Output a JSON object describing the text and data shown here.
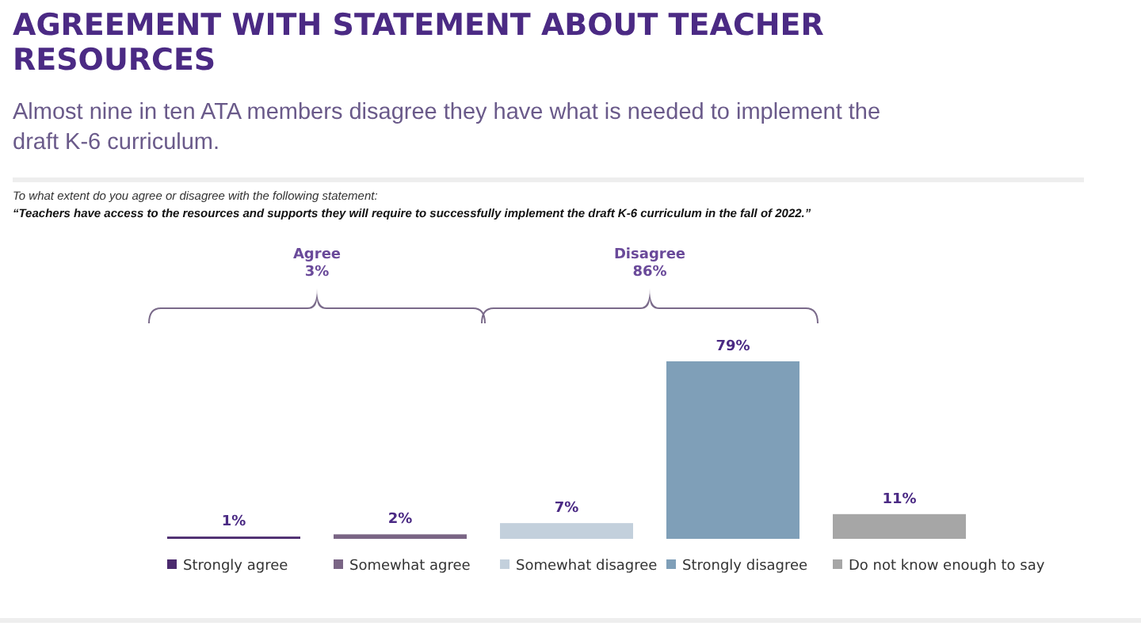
{
  "chart_data": {
    "type": "bar",
    "title": "AGREEMENT WITH STATEMENT ABOUT TEACHER RESOURCES",
    "subtitle": "Almost nine in ten ATA members disagree they have what is needed to implement the draft K-6 curriculum.",
    "annotations": [
      "To what extent do you agree or disagree with the following statement:",
      "“Teachers have access to the resources and supports they will require to successfully implement the draft K-6 curriculum in the fall of 2022.”",
      "Agree\n3%",
      "Disagree\n86%"
    ],
    "categories": [
      "Strongly agree",
      "Somewhat agree",
      "Somewhat disagree",
      "Strongly disagree",
      "Do not know enough to say"
    ],
    "values": [
      1,
      2,
      7,
      79,
      11
    ],
    "colors": [
      "#4b2a6e",
      "#7a6585",
      "#c3d0dc",
      "#7f9fb8",
      "#a6a6a6"
    ],
    "value_labels": [
      "1%",
      "2%",
      "7%",
      "79%",
      "11%"
    ],
    "data_labels": true
  }
}
